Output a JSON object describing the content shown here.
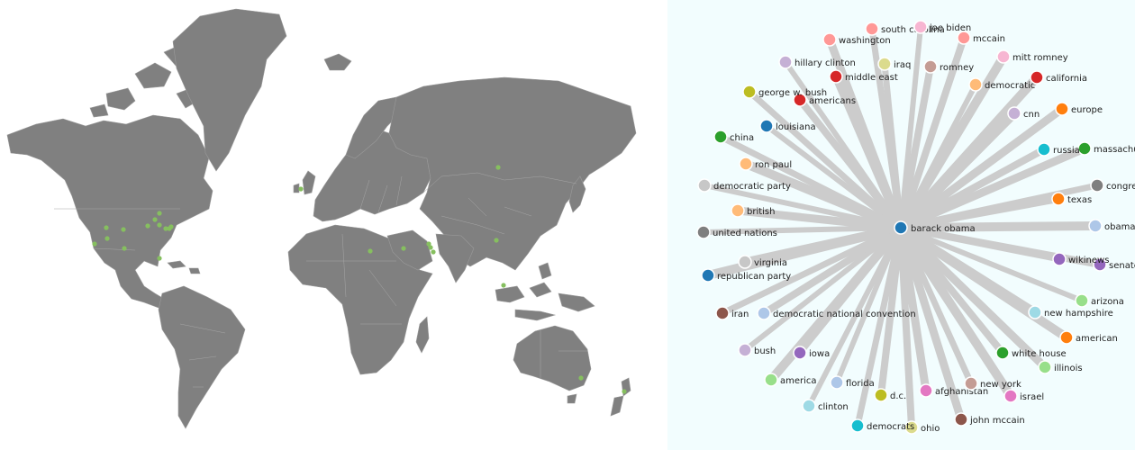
{
  "map": {
    "land_color": "#808080",
    "dot_color": "#86bf5f",
    "location_dots": [
      {
        "place": "united states"
      },
      {
        "place": "united states"
      },
      {
        "place": "united states"
      },
      {
        "place": "united states"
      },
      {
        "place": "united states"
      },
      {
        "place": "united states"
      },
      {
        "place": "united states"
      },
      {
        "place": "united states"
      },
      {
        "place": "united states"
      },
      {
        "place": "united states"
      },
      {
        "place": "united states"
      },
      {
        "place": "united states"
      },
      {
        "place": "united states"
      },
      {
        "place": "united kingdom"
      },
      {
        "place": "russia"
      },
      {
        "place": "israel"
      },
      {
        "place": "iraq"
      },
      {
        "place": "iran"
      },
      {
        "place": "afghanistan"
      },
      {
        "place": "pakistan"
      },
      {
        "place": "china"
      },
      {
        "place": "vietnam"
      },
      {
        "place": "australia"
      },
      {
        "place": "new zealand"
      }
    ]
  },
  "graph": {
    "background": "#f2fdfe",
    "edge_color": "#cccccc",
    "center": {
      "label": "barack obama",
      "color": "#1f77b4"
    },
    "nodes": [
      {
        "label": "joe biden",
        "color": "#f7b6d2"
      },
      {
        "label": "south carolina",
        "color": "#ff9896"
      },
      {
        "label": "mccain",
        "color": "#ff9896"
      },
      {
        "label": "washington",
        "color": "#ff9896"
      },
      {
        "label": "mitt romney",
        "color": "#f7b6d2"
      },
      {
        "label": "hillary clinton",
        "color": "#c5b0d5"
      },
      {
        "label": "iraq",
        "color": "#dbdb8d"
      },
      {
        "label": "romney",
        "color": "#c49c94"
      },
      {
        "label": "middle east",
        "color": "#d62728"
      },
      {
        "label": "california",
        "color": "#d62728"
      },
      {
        "label": "democratic",
        "color": "#ffbb78"
      },
      {
        "label": "george w. bush",
        "color": "#bcbd22"
      },
      {
        "label": "americans",
        "color": "#d62728"
      },
      {
        "label": "europe",
        "color": "#ff7f0e"
      },
      {
        "label": "cnn",
        "color": "#c5b0d5"
      },
      {
        "label": "louisiana",
        "color": "#1f77b4"
      },
      {
        "label": "china",
        "color": "#2ca02c"
      },
      {
        "label": "russia",
        "color": "#17becf"
      },
      {
        "label": "massachusetts",
        "color": "#2ca02c"
      },
      {
        "label": "ron paul",
        "color": "#ffbb78"
      },
      {
        "label": "democratic party",
        "color": "#c7c7c7"
      },
      {
        "label": "congress",
        "color": "#7f7f7f"
      },
      {
        "label": "texas",
        "color": "#ff7f0e"
      },
      {
        "label": "british",
        "color": "#ffbb78"
      },
      {
        "label": "obama",
        "color": "#aec7e8"
      },
      {
        "label": "united nations",
        "color": "#7f7f7f"
      },
      {
        "label": "wikinews",
        "color": "#9467bd"
      },
      {
        "label": "senate",
        "color": "#9467bd"
      },
      {
        "label": "virginia",
        "color": "#c7c7c7"
      },
      {
        "label": "republican party",
        "color": "#1f77b4"
      },
      {
        "label": "arizona",
        "color": "#98df8a"
      },
      {
        "label": "iran",
        "color": "#8c564b"
      },
      {
        "label": "democratic national convention",
        "color": "#aec7e8"
      },
      {
        "label": "new hampshire",
        "color": "#9edae5"
      },
      {
        "label": "american",
        "color": "#ff7f0e"
      },
      {
        "label": "bush",
        "color": "#c5b0d5"
      },
      {
        "label": "iowa",
        "color": "#9467bd"
      },
      {
        "label": "white house",
        "color": "#2ca02c"
      },
      {
        "label": "illinois",
        "color": "#98df8a"
      },
      {
        "label": "america",
        "color": "#98df8a"
      },
      {
        "label": "florida",
        "color": "#aec7e8"
      },
      {
        "label": "new york",
        "color": "#c49c94"
      },
      {
        "label": "d.c.",
        "color": "#bcbd22"
      },
      {
        "label": "afghanistan",
        "color": "#e377c2"
      },
      {
        "label": "israel",
        "color": "#e377c2"
      },
      {
        "label": "clinton",
        "color": "#9edae5"
      },
      {
        "label": "democrats",
        "color": "#17becf"
      },
      {
        "label": "ohio",
        "color": "#dbdb8d"
      },
      {
        "label": "john mccain",
        "color": "#8c564b"
      }
    ]
  }
}
